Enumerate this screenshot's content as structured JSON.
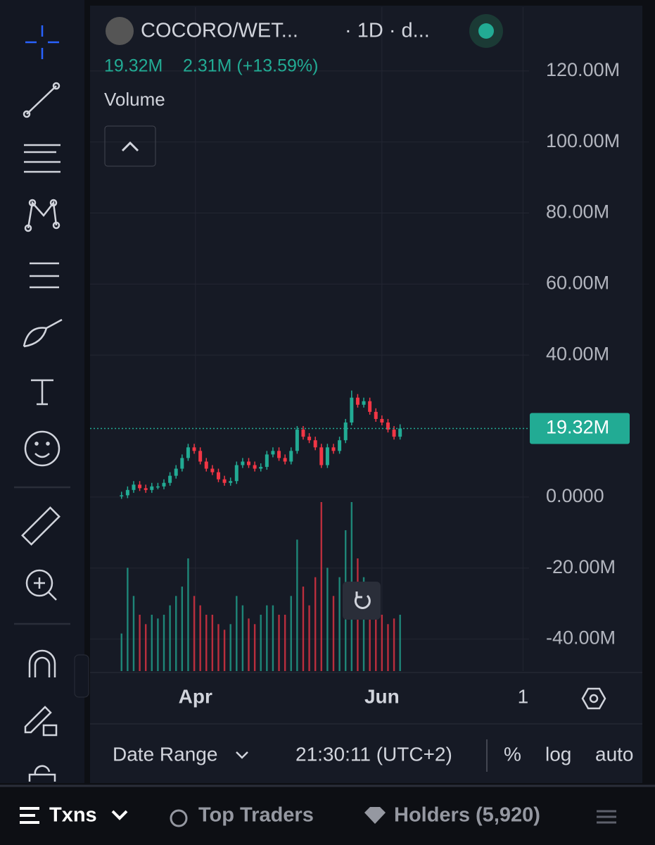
{
  "header": {
    "pair": "COCORO/WET...",
    "interval": "· 1D · d...",
    "volume": "19.32M",
    "change": "2.31M (+13.59%)",
    "indicator": "Volume"
  },
  "chart_data": {
    "type": "candlestick",
    "open": [
      0.3,
      0.5,
      2,
      3.5,
      2.5,
      2,
      3,
      3,
      4,
      6,
      8,
      11,
      14,
      13,
      10,
      8,
      7,
      5,
      4,
      4.5,
      9,
      10,
      9,
      8,
      8.5,
      12,
      13,
      11,
      10,
      13,
      19,
      17,
      16,
      14,
      9,
      14,
      13,
      16,
      21,
      28,
      26,
      27,
      24,
      22,
      21,
      19,
      17
    ],
    "high": [
      1.5,
      3,
      4.5,
      4.5,
      3.5,
      4,
      4,
      5,
      7,
      9,
      12,
      15,
      15,
      14,
      11,
      9,
      8,
      6,
      5.5,
      10,
      11,
      11,
      10,
      9.5,
      13,
      14,
      14,
      12,
      14,
      20,
      20,
      18,
      17,
      15,
      15,
      15,
      17,
      22,
      30,
      29,
      28,
      28,
      25,
      23,
      22,
      20,
      20.5
    ],
    "low": [
      -0.5,
      -0.3,
      1.2,
      1.7,
      1.2,
      1.2,
      2.2,
      2.2,
      3.2,
      5.2,
      7.2,
      10.2,
      12.2,
      9.2,
      7.2,
      6.2,
      4.2,
      3.2,
      3.2,
      3.7,
      8.2,
      8.2,
      7.2,
      7.2,
      7.7,
      11.2,
      10.2,
      9.2,
      9.2,
      12.2,
      16.2,
      15.2,
      13.2,
      8.2,
      8.2,
      12.2,
      12.2,
      15.2,
      20.2,
      25.2,
      25.2,
      23.2,
      21.2,
      20.2,
      18.2,
      16.2,
      16.2
    ],
    "close": [
      0.5,
      2,
      3.5,
      2.5,
      2,
      3,
      3,
      4,
      6,
      8,
      11,
      14,
      13,
      10,
      8,
      7,
      5,
      4,
      4.5,
      9,
      10,
      9,
      8,
      8.5,
      12,
      13,
      11,
      10,
      13,
      19,
      17,
      16,
      14,
      9,
      14,
      13,
      16,
      21,
      28,
      26,
      27,
      24,
      22,
      21,
      19,
      17,
      19.32
    ],
    "volume": [
      20,
      55,
      40,
      30,
      25,
      30,
      28,
      30,
      35,
      40,
      45,
      60,
      40,
      35,
      30,
      30,
      25,
      22,
      25,
      40,
      35,
      28,
      25,
      30,
      35,
      35,
      30,
      30,
      40,
      70,
      45,
      35,
      50,
      90,
      55,
      40,
      50,
      75,
      90,
      60,
      50,
      40,
      35,
      30,
      25,
      28,
      30
    ],
    "up_color": "#22ab94",
    "down_color": "#f23645",
    "ylim": [
      -49,
      138
    ],
    "xlim": [
      -5.2,
      67.3
    ],
    "yticks": [
      {
        "value": 120,
        "label": "120.00M"
      },
      {
        "value": 100,
        "label": "100.00M"
      },
      {
        "value": 80,
        "label": "80.00M"
      },
      {
        "value": 60,
        "label": "60.00M"
      },
      {
        "value": 40,
        "label": "40.00M"
      },
      {
        "value": 0,
        "label": "0.0000"
      },
      {
        "value": -20,
        "label": "-20.00M"
      },
      {
        "value": -40,
        "label": "-40.00M"
      }
    ],
    "xticks": [
      {
        "value": 12.2,
        "label": "Apr"
      },
      {
        "value": 43,
        "label": "Jun"
      },
      {
        "value": 66.3,
        "label": "1"
      }
    ],
    "last_price": {
      "value": 19.32,
      "label": "19.32M"
    },
    "grid": true
  },
  "footer": {
    "date_range": "Date Range",
    "time": "21:30:11 (UTC+2)",
    "percent": "%",
    "log": "log",
    "auto": "auto"
  },
  "tabs": {
    "txns": "Txns",
    "top_traders": "Top Traders",
    "holders": "Holders (5,920)"
  }
}
